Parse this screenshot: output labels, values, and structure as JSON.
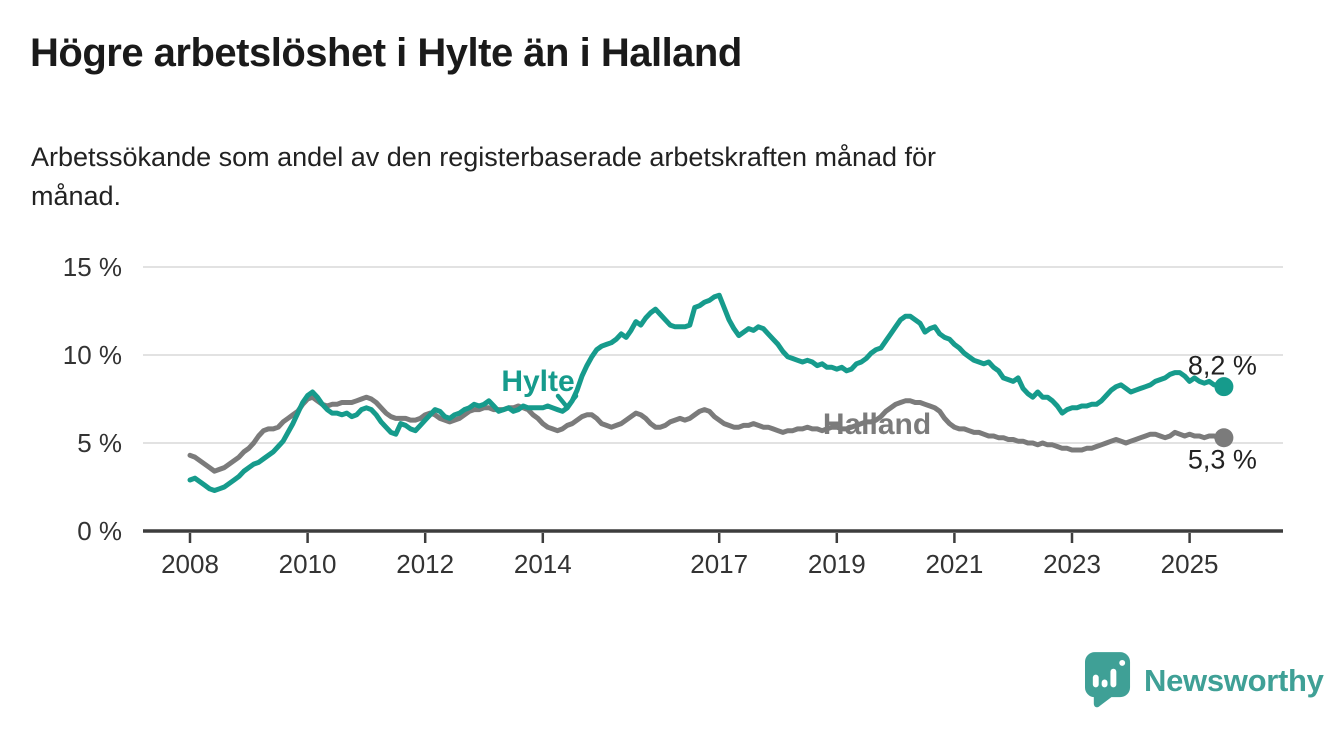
{
  "header": {
    "title": "Högre arbetslöshet i Hylte än i Halland",
    "subtitle": "Arbetssökande som andel av den registerbaserade arbetskraften månad för\nmånad."
  },
  "footer": {
    "brand": "Newsworthy",
    "brand_color": "#3fa096",
    "logo_icon": "newsworthy-speech-bubble-bar-chart-icon"
  },
  "chart_data": {
    "type": "line",
    "title": "Högre arbetslöshet i Hylte än i Halland",
    "subtitle": "Arbetssökande som andel av den registerbaserade arbetskraften månad för månad.",
    "unit": "%",
    "grid": "horizontal-only",
    "legend_position": "inline-labels-on-lines",
    "start_year": 2008,
    "points_per_year": 12,
    "end_period_approx": "2025 (senaste månad)",
    "ylim": [
      0,
      15.9
    ],
    "y_ticks": [
      {
        "value": 0,
        "label": "0 %"
      },
      {
        "value": 5,
        "label": "5 %"
      },
      {
        "value": 10,
        "label": "10 %"
      },
      {
        "value": 15,
        "label": "15 %"
      }
    ],
    "x_ticks": [
      {
        "year": 2008,
        "label": "2008"
      },
      {
        "year": 2010,
        "label": "2010"
      },
      {
        "year": 2012,
        "label": "2012"
      },
      {
        "year": 2014,
        "label": "2014"
      },
      {
        "year": 2017,
        "label": "2017"
      },
      {
        "year": 2019,
        "label": "2019"
      },
      {
        "year": 2021,
        "label": "2021"
      },
      {
        "year": 2023,
        "label": "2023"
      },
      {
        "year": 2025,
        "label": "2025"
      }
    ],
    "series": [
      {
        "name": "Hylte",
        "color": "#169b8c",
        "end_label": "8,2 %",
        "end_label_position": "above",
        "last_value": 8.2,
        "values": [
          2.9,
          3.0,
          2.8,
          2.6,
          2.4,
          2.3,
          2.4,
          2.5,
          2.7,
          2.9,
          3.1,
          3.4,
          3.6,
          3.8,
          3.9,
          4.1,
          4.3,
          4.5,
          4.8,
          5.1,
          5.6,
          6.1,
          6.7,
          7.3,
          7.7,
          7.9,
          7.6,
          7.2,
          6.9,
          6.7,
          6.7,
          6.6,
          6.7,
          6.5,
          6.6,
          6.9,
          7.0,
          6.9,
          6.6,
          6.2,
          5.9,
          5.6,
          5.5,
          6.1,
          6.0,
          5.8,
          5.7,
          6.0,
          6.3,
          6.6,
          6.9,
          6.8,
          6.5,
          6.4,
          6.6,
          6.7,
          6.9,
          7.0,
          7.2,
          7.1,
          7.2,
          7.4,
          7.1,
          6.8,
          6.9,
          7.0,
          6.8,
          6.9,
          7.1,
          7.0,
          7.0,
          7.0,
          7.0,
          7.1,
          7.0,
          6.9,
          6.8,
          7.0,
          7.4,
          8.0,
          8.8,
          9.4,
          9.9,
          10.3,
          10.5,
          10.6,
          10.7,
          10.9,
          11.2,
          11.0,
          11.4,
          11.9,
          11.7,
          12.1,
          12.4,
          12.6,
          12.3,
          12.0,
          11.7,
          11.6,
          11.6,
          11.6,
          11.7,
          12.7,
          12.8,
          13.0,
          13.1,
          13.3,
          13.4,
          12.7,
          12.0,
          11.5,
          11.1,
          11.3,
          11.5,
          11.4,
          11.6,
          11.5,
          11.2,
          10.9,
          10.6,
          10.2,
          9.9,
          9.8,
          9.7,
          9.6,
          9.7,
          9.6,
          9.4,
          9.5,
          9.3,
          9.3,
          9.2,
          9.3,
          9.1,
          9.2,
          9.5,
          9.6,
          9.8,
          10.1,
          10.3,
          10.4,
          10.8,
          11.2,
          11.6,
          12.0,
          12.2,
          12.2,
          12.0,
          11.8,
          11.3,
          11.5,
          11.6,
          11.2,
          11.0,
          10.9,
          10.6,
          10.4,
          10.1,
          9.9,
          9.7,
          9.6,
          9.5,
          9.6,
          9.3,
          9.1,
          8.7,
          8.6,
          8.5,
          8.7,
          8.1,
          7.8,
          7.6,
          7.9,
          7.6,
          7.6,
          7.4,
          7.1,
          6.7,
          6.9,
          7.0,
          7.0,
          7.1,
          7.1,
          7.2,
          7.2,
          7.4,
          7.7,
          8.0,
          8.2,
          8.3,
          8.1,
          7.9,
          8.0,
          8.1,
          8.2,
          8.3,
          8.5,
          8.6,
          8.7,
          8.9,
          9.0,
          9.0,
          8.8,
          8.5,
          8.7,
          8.5,
          8.4,
          8.5,
          8.3,
          8.3,
          8.2
        ]
      },
      {
        "name": "Halland",
        "color": "#7b7b7b",
        "end_label": "5,3 %",
        "end_label_position": "below",
        "last_value": 5.3,
        "values": [
          4.3,
          4.2,
          4.0,
          3.8,
          3.6,
          3.4,
          3.5,
          3.6,
          3.8,
          4.0,
          4.2,
          4.5,
          4.7,
          5.0,
          5.4,
          5.7,
          5.8,
          5.8,
          5.9,
          6.2,
          6.4,
          6.6,
          6.8,
          7.2,
          7.5,
          7.6,
          7.4,
          7.2,
          7.1,
          7.2,
          7.2,
          7.3,
          7.3,
          7.3,
          7.4,
          7.5,
          7.6,
          7.5,
          7.3,
          7.0,
          6.7,
          6.5,
          6.4,
          6.4,
          6.4,
          6.3,
          6.3,
          6.4,
          6.6,
          6.7,
          6.6,
          6.4,
          6.3,
          6.2,
          6.3,
          6.4,
          6.6,
          6.8,
          6.9,
          6.9,
          7.0,
          7.0,
          6.9,
          6.9,
          6.9,
          7.0,
          7.0,
          7.1,
          7.0,
          6.9,
          6.6,
          6.4,
          6.1,
          5.9,
          5.8,
          5.7,
          5.8,
          6.0,
          6.1,
          6.3,
          6.5,
          6.6,
          6.6,
          6.4,
          6.1,
          6.0,
          5.9,
          6.0,
          6.1,
          6.3,
          6.5,
          6.7,
          6.6,
          6.4,
          6.1,
          5.9,
          5.9,
          6.0,
          6.2,
          6.3,
          6.4,
          6.3,
          6.4,
          6.6,
          6.8,
          6.9,
          6.8,
          6.5,
          6.3,
          6.1,
          6.0,
          5.9,
          5.9,
          6.0,
          6.0,
          6.1,
          6.0,
          5.9,
          5.9,
          5.8,
          5.7,
          5.6,
          5.7,
          5.7,
          5.8,
          5.8,
          5.9,
          5.8,
          5.8,
          5.7,
          5.8,
          5.9,
          5.9,
          5.8,
          5.8,
          5.9,
          6.0,
          6.1,
          6.2,
          6.2,
          6.3,
          6.5,
          6.8,
          7.0,
          7.2,
          7.3,
          7.4,
          7.4,
          7.3,
          7.3,
          7.2,
          7.1,
          7.0,
          6.8,
          6.4,
          6.1,
          5.9,
          5.8,
          5.8,
          5.7,
          5.6,
          5.6,
          5.5,
          5.4,
          5.4,
          5.3,
          5.3,
          5.2,
          5.2,
          5.1,
          5.1,
          5.0,
          5.0,
          4.9,
          5.0,
          4.9,
          4.9,
          4.8,
          4.7,
          4.7,
          4.6,
          4.6,
          4.6,
          4.7,
          4.7,
          4.8,
          4.9,
          5.0,
          5.1,
          5.2,
          5.1,
          5.0,
          5.1,
          5.2,
          5.3,
          5.4,
          5.5,
          5.5,
          5.4,
          5.3,
          5.4,
          5.6,
          5.5,
          5.4,
          5.5,
          5.4,
          5.4,
          5.3,
          5.4,
          5.4,
          5.3,
          5.3
        ]
      }
    ]
  }
}
